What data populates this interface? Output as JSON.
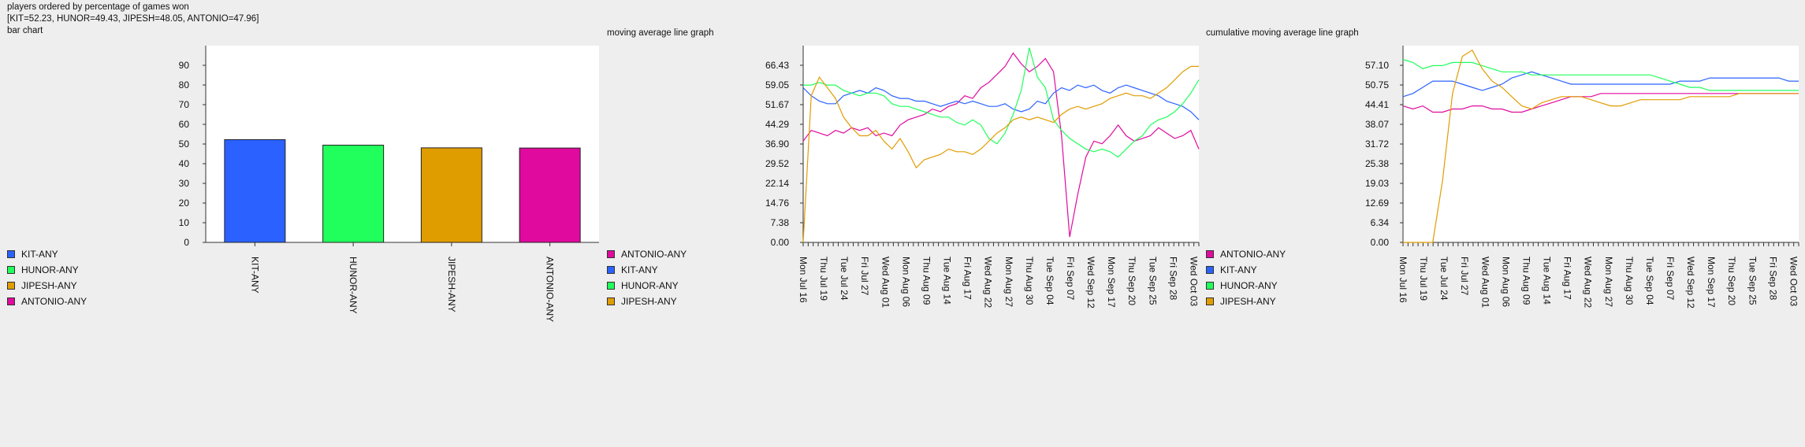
{
  "header": {
    "title": "players ordered by percentage of games won",
    "summary": "[KIT=52.23, HUNOR=49.43, JIPESH=48.05, ANTONIO=47.96]",
    "bar_label": "bar chart"
  },
  "colors": {
    "KIT-ANY": "#2b62ff",
    "HUNOR-ANY": "#21ff5c",
    "JIPESH-ANY": "#e09d00",
    "ANTONIO-ANY": "#e00a9e"
  },
  "chart_data": [
    {
      "type": "bar",
      "title": "bar chart",
      "categories": [
        "KIT-ANY",
        "HUNOR-ANY",
        "JIPESH-ANY",
        "ANTONIO-ANY"
      ],
      "values": [
        52.23,
        49.43,
        48.05,
        47.96
      ],
      "ylim": [
        0,
        100
      ],
      "yticks": [
        "0",
        "10",
        "20",
        "30",
        "40",
        "50",
        "60",
        "70",
        "80",
        "90"
      ],
      "grid": false,
      "legend": [
        "KIT-ANY",
        "HUNOR-ANY",
        "JIPESH-ANY",
        "ANTONIO-ANY"
      ]
    },
    {
      "type": "line",
      "title": "moving average line graph",
      "xlabels": [
        "Mon Jul 16",
        "Thu Jul 19",
        "Tue Jul 24",
        "Fri Jul 27",
        "Wed Aug 01",
        "Mon Aug 06",
        "Thu Aug 09",
        "Tue Aug 14",
        "Fri Aug 17",
        "Wed Aug 22",
        "Mon Aug 27",
        "Thu Aug 30",
        "Tue Sep 04",
        "Fri Sep 07",
        "Wed Sep 12",
        "Mon Sep 17",
        "Thu Sep 20",
        "Tue Sep 25",
        "Fri Sep 28",
        "Wed Oct 03"
      ],
      "yticks": [
        "0.00",
        "7.38",
        "14.76",
        "22.14",
        "29.52",
        "36.90",
        "44.29",
        "51.67",
        "59.05",
        "66.43"
      ],
      "ylim": [
        0,
        73.8
      ],
      "legend": [
        "ANTONIO-ANY",
        "KIT-ANY",
        "HUNOR-ANY",
        "JIPESH-ANY"
      ],
      "series": [
        {
          "name": "ANTONIO-ANY",
          "values": [
            38,
            42,
            41,
            40,
            42,
            41,
            43,
            42,
            43,
            40,
            41,
            40,
            44,
            46,
            47,
            48,
            50,
            49,
            51,
            52,
            55,
            54,
            58,
            60,
            63,
            66,
            71,
            67,
            64,
            66,
            69,
            64,
            40,
            2,
            18,
            32,
            38,
            37,
            40,
            44,
            40,
            38,
            39,
            40,
            43,
            41,
            39,
            40,
            42,
            35
          ]
        },
        {
          "name": "KIT-ANY",
          "values": [
            58,
            55,
            53,
            52,
            52,
            55,
            56,
            57,
            56,
            58,
            57,
            55,
            54,
            54,
            53,
            53,
            52,
            51,
            52,
            53,
            52,
            53,
            52,
            51,
            51,
            52,
            50,
            49,
            50,
            53,
            52,
            56,
            58,
            57,
            59,
            58,
            59,
            57,
            56,
            58,
            59,
            58,
            57,
            56,
            55,
            53,
            52,
            51,
            49,
            46
          ]
        },
        {
          "name": "HUNOR-ANY",
          "values": [
            59,
            59,
            60,
            59,
            59,
            57,
            56,
            55,
            56,
            56,
            55,
            52,
            51,
            51,
            50,
            49,
            48,
            47,
            47,
            45,
            44,
            46,
            44,
            39,
            37,
            41,
            48,
            57,
            73,
            62,
            58,
            46,
            42,
            39,
            37,
            35,
            34,
            35,
            34,
            32,
            35,
            38,
            40,
            44,
            46,
            47,
            49,
            52,
            56,
            61
          ]
        },
        {
          "name": "JIPESH-ANY",
          "values": [
            0,
            55,
            62,
            58,
            54,
            47,
            43,
            40,
            40,
            42,
            38,
            35,
            39,
            34,
            28,
            31,
            32,
            33,
            35,
            34,
            34,
            33,
            35,
            38,
            41,
            43,
            46,
            47,
            46,
            47,
            46,
            45,
            48,
            50,
            51,
            50,
            51,
            52,
            54,
            55,
            56,
            55,
            55,
            54,
            56,
            58,
            61,
            64,
            66,
            66
          ]
        }
      ]
    },
    {
      "type": "line",
      "title": "cumulative moving average line graph",
      "xlabels": [
        "Mon Jul 16",
        "Thu Jul 19",
        "Tue Jul 24",
        "Fri Jul 27",
        "Wed Aug 01",
        "Mon Aug 06",
        "Thu Aug 09",
        "Tue Aug 14",
        "Fri Aug 17",
        "Wed Aug 22",
        "Mon Aug 27",
        "Thu Aug 30",
        "Tue Sep 04",
        "Fri Sep 07",
        "Wed Sep 12",
        "Mon Sep 17",
        "Thu Sep 20",
        "Tue Sep 25",
        "Fri Sep 28",
        "Wed Oct 03"
      ],
      "yticks": [
        "0.00",
        "6.34",
        "12.69",
        "19.03",
        "25.38",
        "31.72",
        "38.07",
        "44.41",
        "50.75",
        "57.10"
      ],
      "ylim": [
        0,
        63.44
      ],
      "legend": [
        "ANTONIO-ANY",
        "KIT-ANY",
        "HUNOR-ANY",
        "JIPESH-ANY"
      ],
      "series": [
        {
          "name": "ANTONIO-ANY",
          "values": [
            44,
            43,
            44,
            42,
            42,
            43,
            43,
            44,
            44,
            43,
            43,
            42,
            42,
            43,
            44,
            45,
            46,
            47,
            47,
            47,
            48,
            48,
            48,
            48,
            48,
            48,
            48,
            48,
            48,
            48,
            48,
            48,
            48,
            48,
            48,
            48,
            48,
            48,
            48,
            48,
            48
          ]
        },
        {
          "name": "KIT-ANY",
          "values": [
            47,
            48,
            50,
            52,
            52,
            52,
            51,
            50,
            49,
            50,
            51,
            53,
            54,
            55,
            54,
            53,
            52,
            51,
            51,
            51,
            51,
            51,
            51,
            51,
            51,
            51,
            51,
            51,
            52,
            52,
            52,
            53,
            53,
            53,
            53,
            53,
            53,
            53,
            53,
            52,
            52
          ]
        },
        {
          "name": "HUNOR-ANY",
          "values": [
            59,
            58,
            56,
            57,
            57,
            58,
            58,
            58,
            57,
            56,
            55,
            55,
            55,
            54,
            54,
            54,
            54,
            54,
            54,
            54,
            54,
            54,
            54,
            54,
            54,
            54,
            53,
            52,
            51,
            50,
            50,
            49,
            49,
            49,
            49,
            49,
            49,
            49,
            49,
            49,
            49
          ]
        },
        {
          "name": "JIPESH-ANY",
          "values": [
            0,
            0,
            0,
            0,
            20,
            48,
            60,
            62,
            56,
            52,
            50,
            47,
            44,
            43,
            45,
            46,
            47,
            47,
            47,
            46,
            45,
            44,
            44,
            45,
            46,
            46,
            46,
            46,
            46,
            47,
            47,
            47,
            47,
            47,
            48,
            48,
            48,
            48,
            48,
            48,
            48
          ]
        }
      ]
    }
  ]
}
